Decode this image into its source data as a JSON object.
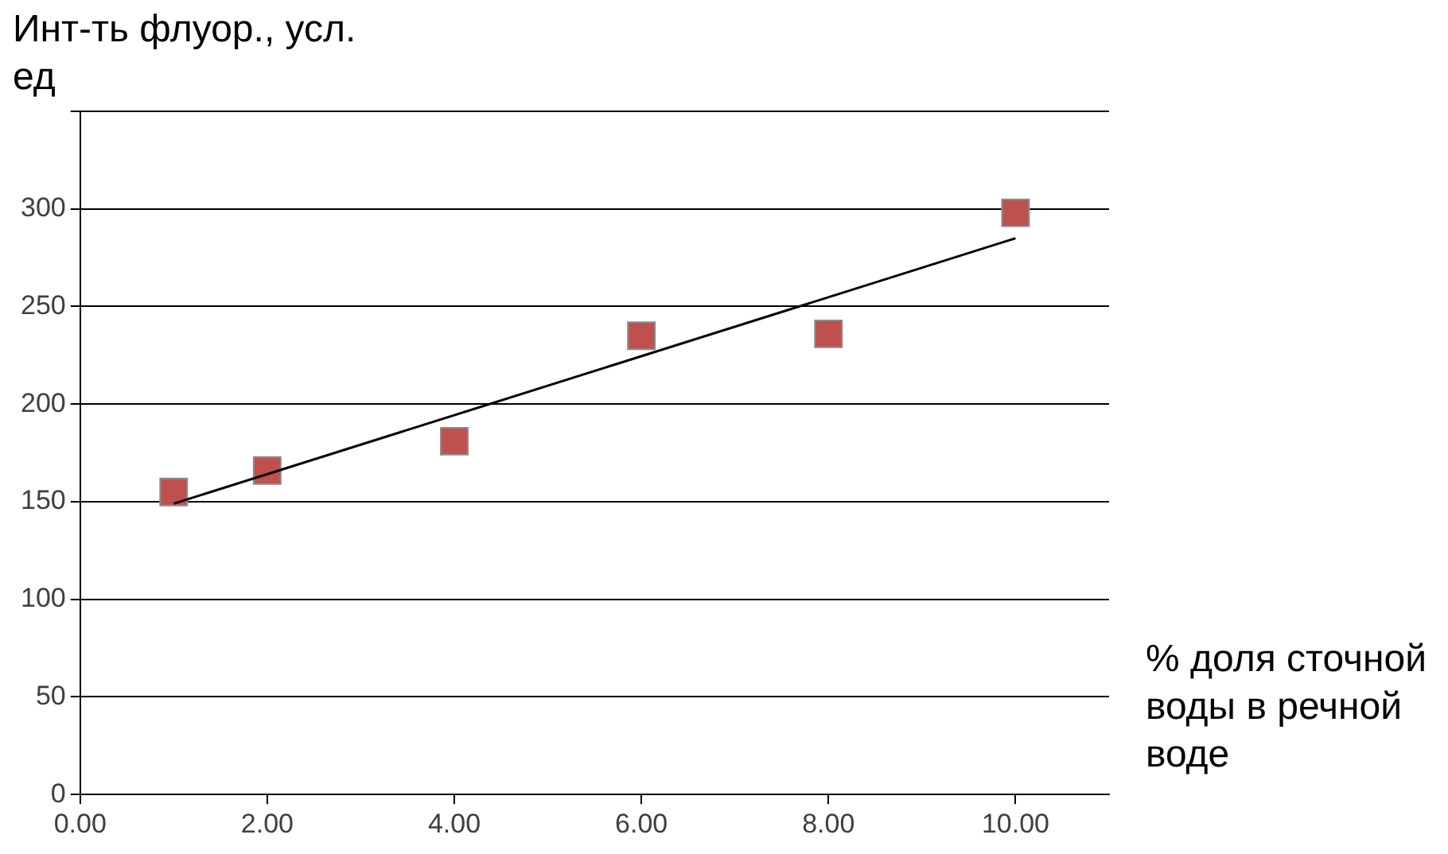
{
  "chart_data": {
    "type": "scatter",
    "xlabel": "% доля сточной воды в речной воде",
    "ylabel": "Инт-ть флуор., усл. ед",
    "series": [
      {
        "type": "scatter",
        "color": "#c0504d",
        "marker": "square",
        "x": [
          1,
          2,
          4,
          6,
          8,
          10
        ],
        "values": [
          155,
          166,
          181,
          235,
          236,
          298
        ]
      },
      {
        "type": "line",
        "color": "#000000",
        "marker": "none",
        "x": [
          1,
          10
        ],
        "values": [
          149,
          285
        ]
      }
    ],
    "xlim": [
      0,
      11
    ],
    "xticks": [
      {
        "value": 0,
        "label": "0.00"
      },
      {
        "value": 2,
        "label": "2.00"
      },
      {
        "value": 4,
        "label": "4.00"
      },
      {
        "value": 6,
        "label": "6.00"
      },
      {
        "value": 8,
        "label": "8.00"
      },
      {
        "value": 10,
        "label": "10.00"
      }
    ],
    "ylim": [
      0,
      350
    ],
    "yticks": [
      0,
      50,
      100,
      150,
      200,
      250,
      300,
      {
        "value": 350,
        "label": null
      }
    ],
    "grid": "y",
    "legend": false
  }
}
